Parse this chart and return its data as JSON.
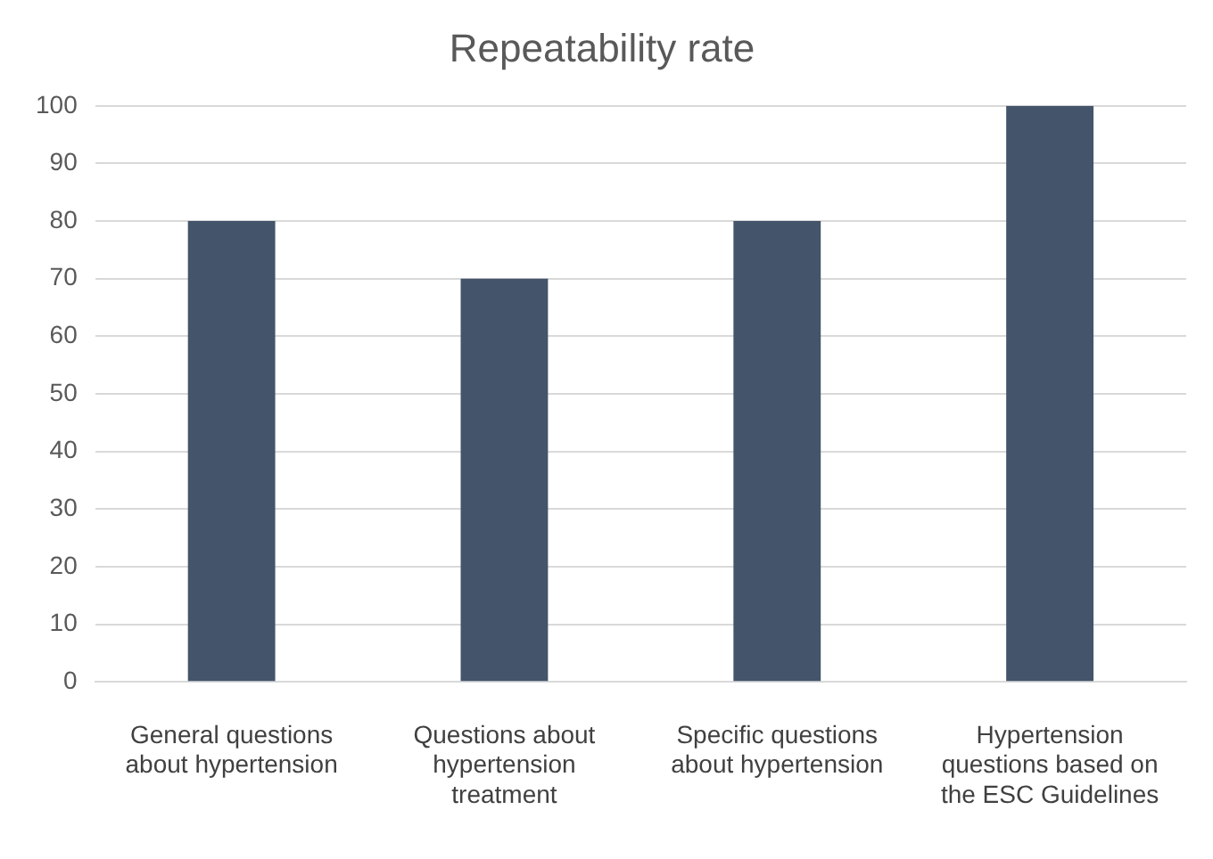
{
  "chart_data": {
    "type": "bar",
    "title": "Repeatability rate",
    "categories": [
      "General questions about hypertension",
      "Questions about hypertension treatment",
      "Specific questions about hypertension",
      "Hypertension questions based on the ESC Guidelines"
    ],
    "values": [
      80,
      70,
      80,
      100
    ],
    "color": "#44546a",
    "ylim": [
      0,
      100
    ],
    "yticks": [
      0,
      10,
      20,
      30,
      40,
      50,
      60,
      70,
      80,
      90,
      100
    ],
    "grid": "y"
  }
}
